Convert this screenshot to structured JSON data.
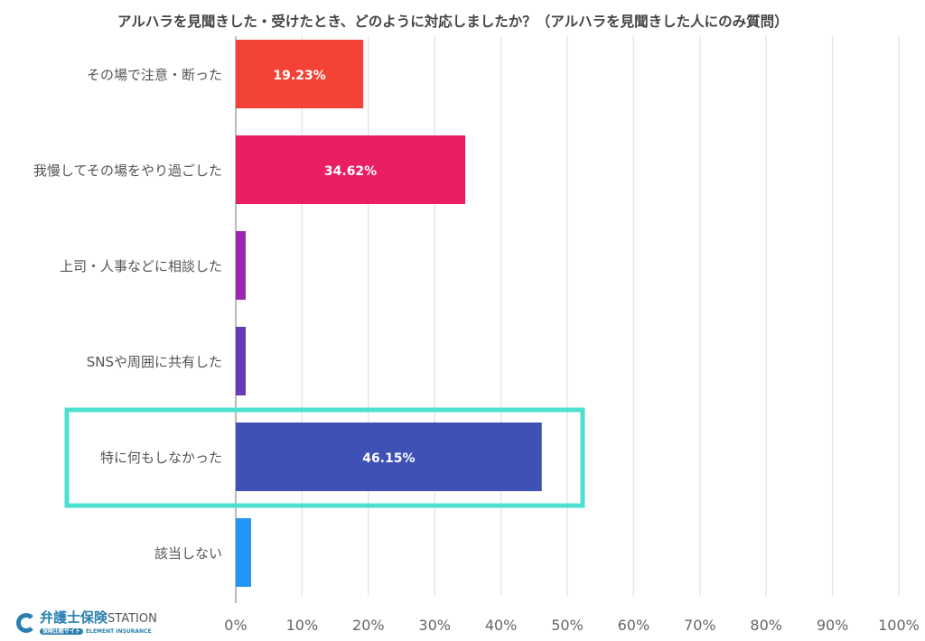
{
  "chart_data": {
    "type": "bar",
    "orientation": "horizontal",
    "title": "アルハラを見聞きした・受けたとき、どのように対応しましたか？（アルハラを見聞きした人にのみ質問）",
    "categories": [
      "その場で注意・断った",
      "我慢してその場をやり過ごした",
      "上司・人事などに相談した",
      "SNSや周囲に共有した",
      "特に何もしなかった",
      "該当しない"
    ],
    "values": [
      19.23,
      34.62,
      0,
      0,
      46.15,
      0
    ],
    "data_labels": [
      "19.23%",
      "34.62%",
      "",
      "",
      "46.15%",
      ""
    ],
    "colors": [
      "#f44336",
      "#e91e63",
      "#9c27b0",
      "#673ab7",
      "#3f51b5",
      "#2196f3"
    ],
    "xlim": [
      0,
      100
    ],
    "x_ticks": [
      "0%",
      "10%",
      "20%",
      "30%",
      "40%",
      "50%",
      "60%",
      "70%",
      "80%",
      "90%",
      "100%"
    ],
    "grid": true,
    "highlight": {
      "category": "特に何もしなかった",
      "color": "#4de0d0"
    }
  },
  "logo": {
    "name": "弁護士保険",
    "name_suffix": "STATION",
    "tagline": "保険比較サイト",
    "company": "ELEMENT INSURANCE"
  }
}
